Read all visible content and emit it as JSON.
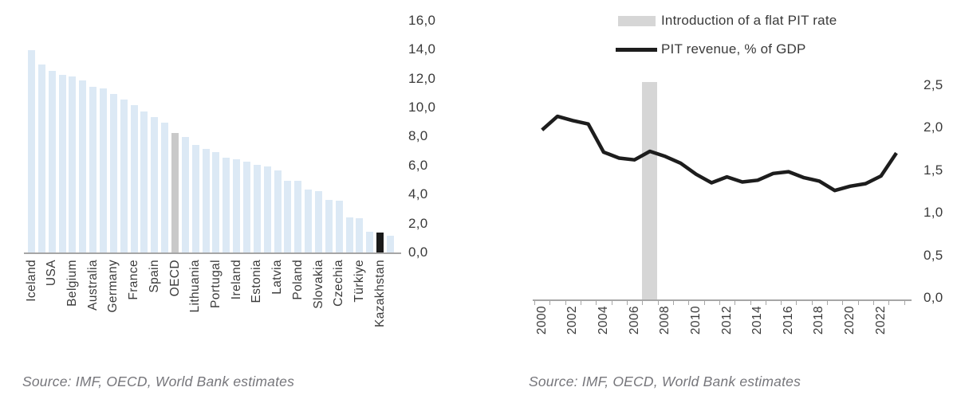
{
  "page": {
    "background": "#ffffff"
  },
  "chart_data": [
    {
      "id": "pit-revenue-by-country",
      "type": "bar",
      "title": "",
      "xlabel": "",
      "ylabel": "",
      "ylim": [
        0,
        16
      ],
      "grid": false,
      "y_ticks": [
        "0,0",
        "2,0",
        "4,0",
        "6,0",
        "8,0",
        "10,0",
        "12,0",
        "14,0",
        "16,0"
      ],
      "categories": [
        "Iceland",
        "",
        "USA",
        "",
        "Belgium",
        "",
        "Australia",
        "",
        "Germany",
        "",
        "France",
        "",
        "Spain",
        "",
        "OECD",
        "",
        "Lithuania",
        "",
        "Portugal",
        "",
        "Ireland",
        "",
        "Estonia",
        "",
        "Latvia",
        "",
        "Poland",
        "",
        "Slovakia",
        "",
        "Czechia",
        "",
        "Türkiye",
        "",
        "Kazakhstan",
        ""
      ],
      "values": [
        14.0,
        13.0,
        12.6,
        12.3,
        12.2,
        11.9,
        11.5,
        11.4,
        11.0,
        10.6,
        10.2,
        9.8,
        9.4,
        9.0,
        8.3,
        8.0,
        7.5,
        7.2,
        7.0,
        6.6,
        6.5,
        6.3,
        6.1,
        6.0,
        5.7,
        5.0,
        5.0,
        4.4,
        4.3,
        3.7,
        3.6,
        2.5,
        2.4,
        1.5,
        1.45,
        1.2
      ],
      "bar_default_color": "#dce9f5",
      "bar_color_overrides": {
        "14": "#c9c9c9",
        "34": "#1a1a1a"
      },
      "source": "Source: IMF, OECD, World Bank estimates"
    },
    {
      "id": "pit-revenue-timeseries",
      "type": "line",
      "title": "",
      "xlabel": "",
      "ylabel": "",
      "ylim": [
        0,
        2.5
      ],
      "grid": false,
      "legend_position": "top",
      "x": [
        2000,
        2001,
        2002,
        2003,
        2004,
        2005,
        2006,
        2007,
        2008,
        2009,
        2010,
        2011,
        2012,
        2013,
        2014,
        2015,
        2016,
        2017,
        2018,
        2019,
        2020,
        2021,
        2022,
        2023
      ],
      "series": [
        {
          "name": "PIT revenue, % of GDP",
          "color": "#1d1d1d",
          "values": [
            1.97,
            2.13,
            2.08,
            2.04,
            1.71,
            1.64,
            1.62,
            1.72,
            1.66,
            1.58,
            1.45,
            1.35,
            1.42,
            1.36,
            1.38,
            1.46,
            1.48,
            1.41,
            1.37,
            1.26,
            1.31,
            1.34,
            1.43,
            1.7
          ]
        }
      ],
      "band": {
        "name": "Introduction of a flat PIT rate",
        "year": 2007,
        "color": "#d6d6d6"
      },
      "y_ticks": [
        "0,0",
        "0,5",
        "1,0",
        "1,5",
        "2,0",
        "2,5"
      ],
      "x_tick_labels": [
        "2000",
        "2002",
        "2004",
        "2006",
        "2008",
        "2010",
        "2012",
        "2014",
        "2016",
        "2018",
        "2020",
        "2022"
      ],
      "source": "Source: IMF, OECD, World Bank estimates"
    }
  ]
}
